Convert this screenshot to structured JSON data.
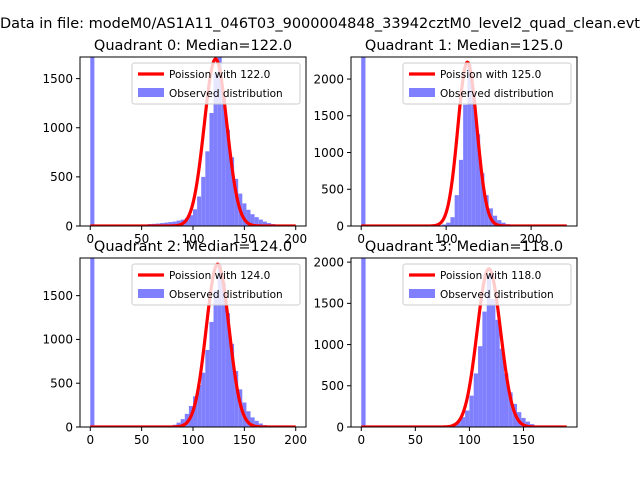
{
  "suptitle": "Data in file: modeM0/AS1A11_046T03_9000004848_33942cztM0_level2_quad_clean.evt",
  "colors": {
    "hist": "#8080ff",
    "curve": "#ff0000"
  },
  "chart_data": [
    {
      "type": "bar",
      "title": "Quadrant 0: Median=122.0",
      "curve_label": "Poission with 122.0",
      "hist_label": "Observed distribution",
      "median": 122.0,
      "xlim": [
        -10,
        210
      ],
      "ylim": [
        0,
        1720
      ],
      "xticks": [
        0,
        50,
        100,
        150,
        200
      ],
      "yticks": [
        0,
        500,
        1000,
        1500
      ],
      "bin_width": 4,
      "bins": [
        [
          0,
          1720
        ],
        [
          48,
          10
        ],
        [
          52,
          15
        ],
        [
          56,
          20
        ],
        [
          60,
          22
        ],
        [
          64,
          25
        ],
        [
          68,
          30
        ],
        [
          72,
          35
        ],
        [
          76,
          40
        ],
        [
          80,
          45
        ],
        [
          84,
          55
        ],
        [
          88,
          65
        ],
        [
          92,
          80
        ],
        [
          96,
          110
        ],
        [
          100,
          170
        ],
        [
          104,
          300
        ],
        [
          108,
          500
        ],
        [
          112,
          760
        ],
        [
          116,
          1150
        ],
        [
          120,
          1560
        ],
        [
          124,
          1720
        ],
        [
          128,
          1320
        ],
        [
          132,
          980
        ],
        [
          136,
          700
        ],
        [
          140,
          480
        ],
        [
          144,
          330
        ],
        [
          148,
          230
        ],
        [
          152,
          165
        ],
        [
          156,
          120
        ],
        [
          160,
          90
        ],
        [
          164,
          65
        ],
        [
          168,
          45
        ],
        [
          172,
          30
        ],
        [
          176,
          20
        ],
        [
          180,
          12
        ],
        [
          184,
          8
        ]
      ],
      "curve": {
        "mu": 122.0,
        "peak": 1700,
        "sigma": 11.04,
        "xmin": 0,
        "xmax": 200
      }
    },
    {
      "type": "bar",
      "title": "Quadrant 1: Median=125.0",
      "curve_label": "Poission with 125.0",
      "hist_label": "Observed distribution",
      "median": 125.0,
      "xlim": [
        -12,
        254
      ],
      "ylim": [
        0,
        2300
      ],
      "xticks": [
        0,
        100,
        200
      ],
      "yticks": [
        0,
        500,
        1000,
        1500,
        2000
      ],
      "bin_width": 5,
      "bins": [
        [
          0,
          2300
        ],
        [
          90,
          10
        ],
        [
          95,
          20
        ],
        [
          100,
          45
        ],
        [
          105,
          120
        ],
        [
          110,
          420
        ],
        [
          115,
          900
        ],
        [
          120,
          1650
        ],
        [
          125,
          2200
        ],
        [
          130,
          1800
        ],
        [
          135,
          1250
        ],
        [
          140,
          720
        ],
        [
          145,
          420
        ],
        [
          150,
          240
        ],
        [
          155,
          140
        ],
        [
          160,
          80
        ],
        [
          165,
          45
        ],
        [
          170,
          25
        ],
        [
          175,
          12
        ]
      ],
      "curve": {
        "mu": 125.0,
        "peak": 2230,
        "sigma": 11.18,
        "xmin": 0,
        "xmax": 242
      }
    },
    {
      "type": "bar",
      "title": "Quadrant 2: Median=124.0",
      "curve_label": "Poission with 124.0",
      "hist_label": "Observed distribution",
      "median": 124.0,
      "xlim": [
        -10,
        210
      ],
      "ylim": [
        0,
        1930
      ],
      "xticks": [
        0,
        50,
        100,
        150,
        200
      ],
      "yticks": [
        0,
        500,
        1000,
        1500
      ],
      "bin_width": 4,
      "bins": [
        [
          0,
          1930
        ],
        [
          76,
          10
        ],
        [
          80,
          25
        ],
        [
          84,
          50
        ],
        [
          88,
          90
        ],
        [
          92,
          150
        ],
        [
          96,
          240
        ],
        [
          100,
          350
        ],
        [
          104,
          480
        ],
        [
          108,
          620
        ],
        [
          112,
          880
        ],
        [
          116,
          1200
        ],
        [
          120,
          1560
        ],
        [
          124,
          1850
        ],
        [
          128,
          1650
        ],
        [
          132,
          1300
        ],
        [
          136,
          950
        ],
        [
          140,
          640
        ],
        [
          144,
          430
        ],
        [
          148,
          280
        ],
        [
          152,
          180
        ],
        [
          156,
          110
        ],
        [
          160,
          70
        ],
        [
          164,
          40
        ],
        [
          168,
          22
        ],
        [
          172,
          10
        ]
      ],
      "curve": {
        "mu": 124.0,
        "peak": 1860,
        "sigma": 11.14,
        "xmin": 0,
        "xmax": 200
      }
    },
    {
      "type": "bar",
      "title": "Quadrant 3: Median=118.0",
      "curve_label": "Poission with 118.0",
      "hist_label": "Observed distribution",
      "median": 118.0,
      "xlim": [
        -9.5,
        199.5
      ],
      "ylim": [
        0,
        2050
      ],
      "xticks": [
        0,
        50,
        100,
        150
      ],
      "yticks": [
        0,
        500,
        1000,
        1500,
        2000
      ],
      "bin_width": 4,
      "bins": [
        [
          0,
          2050
        ],
        [
          76,
          10
        ],
        [
          80,
          20
        ],
        [
          84,
          40
        ],
        [
          88,
          70
        ],
        [
          92,
          120
        ],
        [
          96,
          200
        ],
        [
          100,
          380
        ],
        [
          104,
          650
        ],
        [
          108,
          980
        ],
        [
          112,
          1400
        ],
        [
          116,
          1850
        ],
        [
          120,
          1550
        ],
        [
          124,
          1300
        ],
        [
          128,
          950
        ],
        [
          132,
          650
        ],
        [
          136,
          420
        ],
        [
          140,
          280
        ],
        [
          144,
          180
        ],
        [
          148,
          110
        ],
        [
          152,
          65
        ],
        [
          156,
          35
        ],
        [
          160,
          15
        ]
      ],
      "curve": {
        "mu": 118.0,
        "peak": 1920,
        "sigma": 10.86,
        "xmin": 0,
        "xmax": 190
      }
    }
  ]
}
